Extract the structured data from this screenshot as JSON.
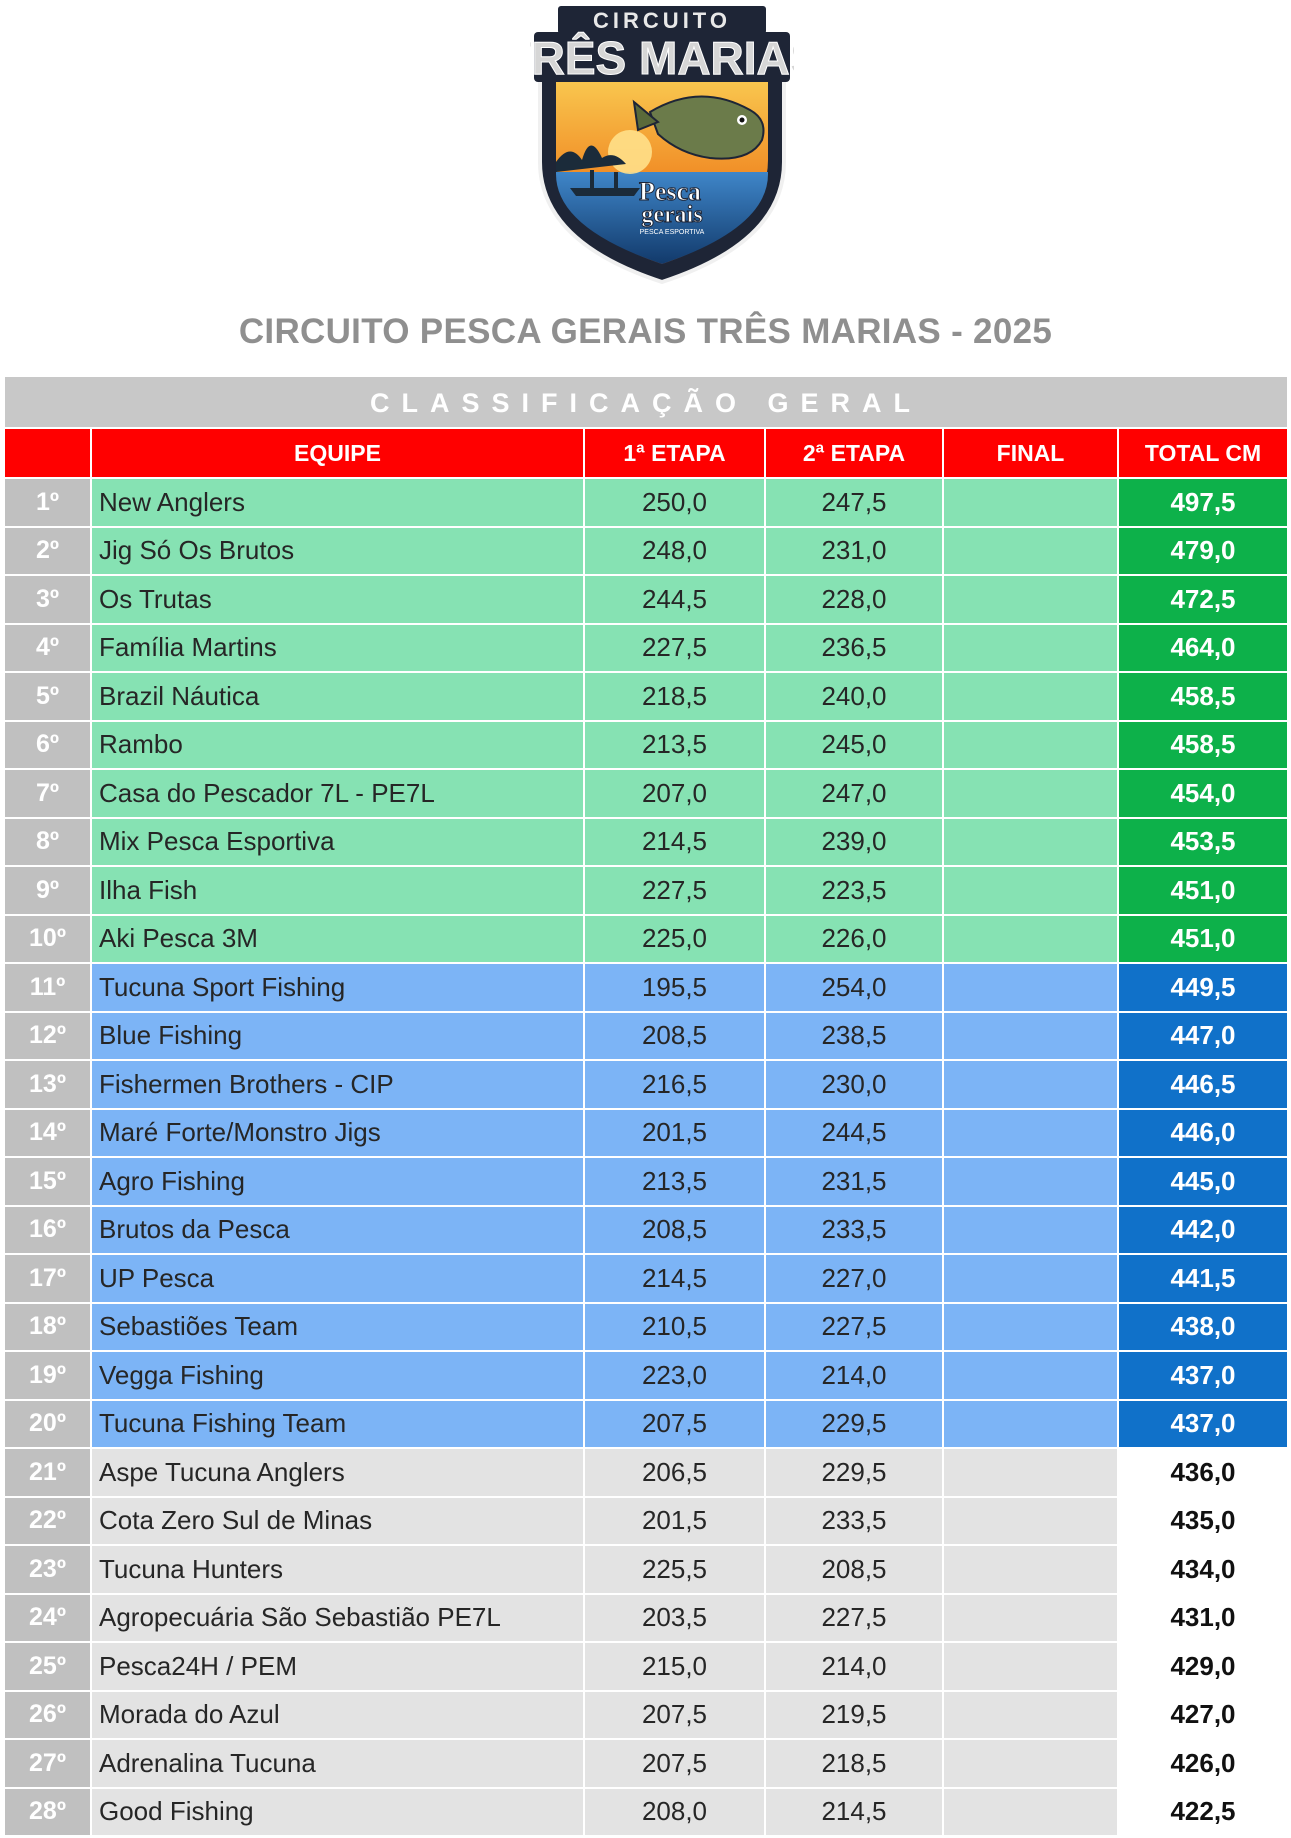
{
  "logo": {
    "top_text": "CIRCUITO",
    "main_text": "TRÊS MARIAS",
    "brand_line1": "Pesca",
    "brand_line2": "gerais",
    "brand_sub": "PESCA ESPORTIVA",
    "colors": {
      "shield": "#1f2a44",
      "sunset": "#f2a23a",
      "water": "#2a6fb5"
    }
  },
  "title": "CIRCUITO PESCA GERAIS TRÊS MARIAS - 2025",
  "section_header": "CLASSIFICAÇÃO  GERAL",
  "columns": {
    "team": "EQUIPE",
    "stage1": "1ª ETAPA",
    "stage2": "2ª ETAPA",
    "final": "FINAL",
    "total": "TOTAL CM"
  },
  "colors": {
    "header_red": "#ff0000",
    "green_row": "#86e2b3",
    "green_total": "#0db14a",
    "blue_row": "#7cb4f6",
    "blue_total": "#1071c9",
    "gray_row": "#e3e3e3",
    "position_gray": "#c0c0c0"
  },
  "rows": [
    {
      "pos": "1º",
      "team": "New Anglers",
      "e1": "250,0",
      "e2": "247,5",
      "final": "",
      "total": "497,5",
      "tier": "green"
    },
    {
      "pos": "2º",
      "team": "Jig Só Os Brutos",
      "e1": "248,0",
      "e2": "231,0",
      "final": "",
      "total": "479,0",
      "tier": "green"
    },
    {
      "pos": "3º",
      "team": "Os Trutas",
      "e1": "244,5",
      "e2": "228,0",
      "final": "",
      "total": "472,5",
      "tier": "green"
    },
    {
      "pos": "4º",
      "team": "Família Martins",
      "e1": "227,5",
      "e2": "236,5",
      "final": "",
      "total": "464,0",
      "tier": "green"
    },
    {
      "pos": "5º",
      "team": "Brazil Náutica",
      "e1": "218,5",
      "e2": "240,0",
      "final": "",
      "total": "458,5",
      "tier": "green"
    },
    {
      "pos": "6º",
      "team": "Rambo",
      "e1": "213,5",
      "e2": "245,0",
      "final": "",
      "total": "458,5",
      "tier": "green"
    },
    {
      "pos": "7º",
      "team": "Casa do Pescador 7L - PE7L",
      "e1": "207,0",
      "e2": "247,0",
      "final": "",
      "total": "454,0",
      "tier": "green"
    },
    {
      "pos": "8º",
      "team": "Mix Pesca Esportiva",
      "e1": "214,5",
      "e2": "239,0",
      "final": "",
      "total": "453,5",
      "tier": "green"
    },
    {
      "pos": "9º",
      "team": "Ilha Fish",
      "e1": "227,5",
      "e2": "223,5",
      "final": "",
      "total": "451,0",
      "tier": "green"
    },
    {
      "pos": "10º",
      "team": "Aki Pesca 3M",
      "e1": "225,0",
      "e2": "226,0",
      "final": "",
      "total": "451,0",
      "tier": "green"
    },
    {
      "pos": "11º",
      "team": "Tucuna Sport Fishing",
      "e1": "195,5",
      "e2": "254,0",
      "final": "",
      "total": "449,5",
      "tier": "blue"
    },
    {
      "pos": "12º",
      "team": "Blue Fishing",
      "e1": "208,5",
      "e2": "238,5",
      "final": "",
      "total": "447,0",
      "tier": "blue"
    },
    {
      "pos": "13º",
      "team": "Fishermen Brothers - CIP",
      "e1": "216,5",
      "e2": "230,0",
      "final": "",
      "total": "446,5",
      "tier": "blue"
    },
    {
      "pos": "14º",
      "team": "Maré Forte/Monstro Jigs",
      "e1": "201,5",
      "e2": "244,5",
      "final": "",
      "total": "446,0",
      "tier": "blue"
    },
    {
      "pos": "15º",
      "team": "Agro Fishing",
      "e1": "213,5",
      "e2": "231,5",
      "final": "",
      "total": "445,0",
      "tier": "blue"
    },
    {
      "pos": "16º",
      "team": "Brutos da Pesca",
      "e1": "208,5",
      "e2": "233,5",
      "final": "",
      "total": "442,0",
      "tier": "blue"
    },
    {
      "pos": "17º",
      "team": "UP Pesca",
      "e1": "214,5",
      "e2": "227,0",
      "final": "",
      "total": "441,5",
      "tier": "blue"
    },
    {
      "pos": "18º",
      "team": "Sebastiões Team",
      "e1": "210,5",
      "e2": "227,5",
      "final": "",
      "total": "438,0",
      "tier": "blue"
    },
    {
      "pos": "19º",
      "team": "Vegga Fishing",
      "e1": "223,0",
      "e2": "214,0",
      "final": "",
      "total": "437,0",
      "tier": "blue"
    },
    {
      "pos": "20º",
      "team": "Tucuna Fishing Team",
      "e1": "207,5",
      "e2": "229,5",
      "final": "",
      "total": "437,0",
      "tier": "blue"
    },
    {
      "pos": "21º",
      "team": "Aspe Tucuna Anglers",
      "e1": "206,5",
      "e2": "229,5",
      "final": "",
      "total": "436,0",
      "tier": "gray"
    },
    {
      "pos": "22º",
      "team": "Cota Zero Sul de Minas",
      "e1": "201,5",
      "e2": "233,5",
      "final": "",
      "total": "435,0",
      "tier": "gray"
    },
    {
      "pos": "23º",
      "team": "Tucuna Hunters",
      "e1": "225,5",
      "e2": "208,5",
      "final": "",
      "total": "434,0",
      "tier": "gray"
    },
    {
      "pos": "24º",
      "team": "Agropecuária São Sebastião PE7L",
      "e1": "203,5",
      "e2": "227,5",
      "final": "",
      "total": "431,0",
      "tier": "gray"
    },
    {
      "pos": "25º",
      "team": "Pesca24H / PEM",
      "e1": "215,0",
      "e2": "214,0",
      "final": "",
      "total": "429,0",
      "tier": "gray"
    },
    {
      "pos": "26º",
      "team": "Morada do Azul",
      "e1": "207,5",
      "e2": "219,5",
      "final": "",
      "total": "427,0",
      "tier": "gray"
    },
    {
      "pos": "27º",
      "team": "Adrenalina Tucuna",
      "e1": "207,5",
      "e2": "218,5",
      "final": "",
      "total": "426,0",
      "tier": "gray"
    },
    {
      "pos": "28º",
      "team": "Good Fishing",
      "e1": "208,0",
      "e2": "214,5",
      "final": "",
      "total": "422,5",
      "tier": "gray"
    }
  ]
}
